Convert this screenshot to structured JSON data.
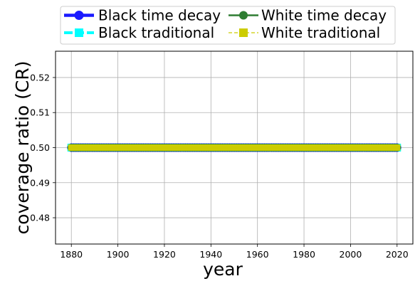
{
  "chart_data": {
    "type": "line",
    "xlabel": "year",
    "ylabel": "coverage ratio (CR)",
    "xlim": [
      1873.2,
      2026.8
    ],
    "ylim": [
      0.4725,
      0.5275
    ],
    "x_ticks": [
      1880,
      1900,
      1920,
      1940,
      1960,
      1980,
      2000,
      2020
    ],
    "y_ticks": [
      0.48,
      0.49,
      0.5,
      0.51,
      0.52
    ],
    "y_tick_labels": [
      "0.48",
      "0.49",
      "0.50",
      "0.51",
      "0.52"
    ],
    "grid": true,
    "legend_position": "top-center, above plot, 2 columns",
    "x_start": 1880,
    "x_end": 2020,
    "x_step": 1,
    "series": [
      {
        "name": "Black time decay",
        "color": "#1a1aff",
        "marker": "circle",
        "line_style": "solid",
        "value": 0.5
      },
      {
        "name": "Black traditional",
        "color": "#00ffff",
        "marker": "square",
        "line_style": "dashed",
        "value": 0.5
      },
      {
        "name": "White time decay",
        "color": "#2e7d32",
        "marker": "circle",
        "line_style": "solid",
        "value": 0.5
      },
      {
        "name": "White traditional",
        "color": "#cccc00",
        "marker": "square",
        "line_style": "dashed",
        "value": 0.5
      }
    ]
  }
}
